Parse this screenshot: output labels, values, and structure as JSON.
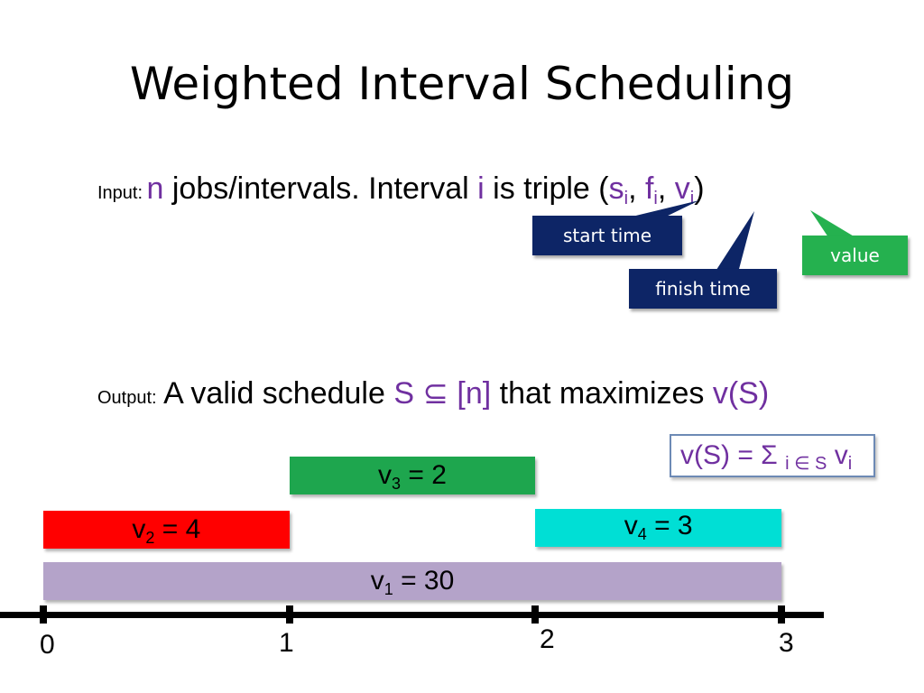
{
  "title": "Weighted Interval Scheduling",
  "input": {
    "label": "Input:",
    "n": "n",
    "text1": " jobs/intervals. Interval ",
    "i": "i",
    "text2": " is triple (",
    "s": "s",
    "s_sub": "i",
    "comma1": ", ",
    "f": "f",
    "f_sub": "i",
    "comma2": ", ",
    "v": "v",
    "v_sub": "i",
    "close": ")"
  },
  "callouts": {
    "start_time": "start time",
    "finish_time": "finish time",
    "value": "value"
  },
  "output": {
    "label": "Output:",
    "text1": " A valid schedule ",
    "set": "S ⊆ [n]",
    "text2": " that maximizes ",
    "vs": "v(S)"
  },
  "formula": {
    "lhs": "v(S) = Σ ",
    "sub": "i ∈ S",
    "rhs": " v",
    "rhs_sub": "i"
  },
  "colors": {
    "v1": "#b4a3c9",
    "v2": "#ff0000",
    "v3": "#1ea64e",
    "v4": "#00dfd5",
    "navy": "#0d2566",
    "green_callout": "#25b14f",
    "purple": "#7030a0"
  },
  "intervals": [
    {
      "name": "v",
      "sub": "1",
      "value_text": "= 30",
      "start": 0,
      "finish": 3,
      "value": 30
    },
    {
      "name": "v",
      "sub": "2",
      "value_text": "= 4",
      "start": 0,
      "finish": 1,
      "value": 4
    },
    {
      "name": "v",
      "sub": "3",
      "value_text": "= 2",
      "start": 1,
      "finish": 2,
      "value": 2
    },
    {
      "name": "v",
      "sub": "4",
      "value_text": "= 3",
      "start": 2,
      "finish": 3,
      "value": 3
    }
  ],
  "axis": {
    "ticks": [
      "0",
      "1",
      "2",
      "3"
    ]
  }
}
